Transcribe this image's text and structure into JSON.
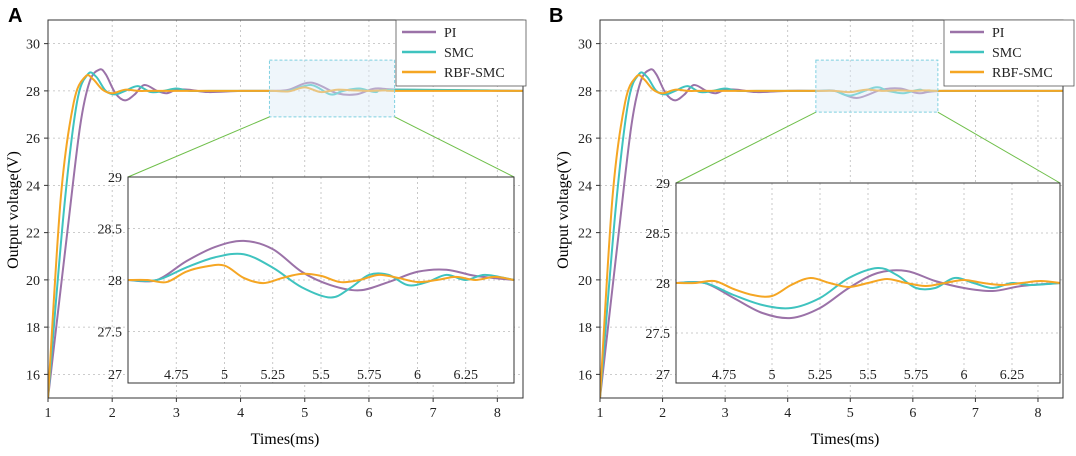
{
  "figure": {
    "panels": [
      "A",
      "B"
    ]
  },
  "colors": {
    "PI": "#9b72a8",
    "SMC": "#3fc3bf",
    "RBF-SMC": "#f5a623",
    "zoom_box": "#7fd0e0",
    "connector": "#6fbf4a",
    "grid": "#bbbbbb"
  },
  "chart_data": [
    {
      "panel": "A",
      "type": "line",
      "xlabel": "Times(ms)",
      "ylabel": "Output voltage(V)",
      "xlim": [
        1,
        8.4
      ],
      "ylim": [
        15,
        31
      ],
      "xticks": [
        "1",
        "2",
        "3",
        "4",
        "5",
        "6",
        "7",
        "8"
      ],
      "yticks": [
        "16",
        "18",
        "20",
        "22",
        "24",
        "26",
        "28",
        "30"
      ],
      "legend": [
        "PI",
        "SMC",
        "RBF-SMC"
      ],
      "zoom_region": {
        "x": [
          4.45,
          6.4
        ],
        "y": [
          26.9,
          29.3
        ]
      },
      "series": [
        {
          "name": "PI",
          "x": [
            1,
            1.3,
            1.5,
            1.65,
            1.8,
            1.9,
            2.05,
            2.2,
            2.35,
            2.5,
            2.7,
            2.85,
            3.0,
            3.2,
            3.5,
            4.0,
            4.5,
            4.75,
            5.1,
            5.5,
            5.8,
            6.1,
            6.5,
            8.4
          ],
          "y": [
            15,
            22,
            26.5,
            28.4,
            28.9,
            28.7,
            27.9,
            27.6,
            27.85,
            28.25,
            28.0,
            27.9,
            28.05,
            28.05,
            27.95,
            28.0,
            28.0,
            28.05,
            28.35,
            27.9,
            27.85,
            28.1,
            28.05,
            28.0
          ]
        },
        {
          "name": "SMC",
          "x": [
            1,
            1.25,
            1.45,
            1.62,
            1.75,
            1.9,
            2.05,
            2.2,
            2.4,
            2.6,
            2.8,
            3.0,
            3.2,
            3.5,
            4.0,
            4.5,
            4.75,
            5.1,
            5.4,
            5.6,
            5.85,
            6.1,
            6.4,
            8.4
          ],
          "y": [
            15,
            23,
            27.5,
            28.7,
            28.6,
            28.0,
            27.85,
            28.0,
            28.2,
            27.95,
            28.0,
            28.1,
            28.0,
            28.0,
            28.0,
            28.0,
            28.0,
            28.25,
            27.85,
            28.0,
            28.1,
            27.95,
            28.05,
            28.0
          ]
        },
        {
          "name": "RBF-SMC",
          "x": [
            1,
            1.2,
            1.4,
            1.58,
            1.7,
            1.85,
            2.0,
            2.2,
            2.4,
            2.6,
            3.0,
            3.5,
            4.0,
            4.5,
            4.75,
            5.0,
            5.25,
            5.5,
            5.75,
            6.0,
            6.25,
            6.5,
            8.4
          ],
          "y": [
            15,
            23.5,
            27.5,
            28.6,
            28.5,
            28.05,
            27.9,
            28.05,
            28.0,
            28.0,
            28.0,
            28.0,
            28.0,
            28.0,
            27.98,
            28.15,
            27.95,
            28.05,
            28.02,
            28.0,
            28.02,
            28.0,
            28.0
          ]
        }
      ],
      "inset": {
        "xlim": [
          4.5,
          6.5
        ],
        "ylim": [
          27,
          29
        ],
        "xticks": [
          "4.75",
          "5",
          "5.25",
          "5.5",
          "5.75",
          "6",
          "6.25"
        ],
        "yticks": [
          "27",
          "27.5",
          "28",
          "28.5",
          "29"
        ],
        "series": [
          {
            "name": "PI",
            "x": [
              4.5,
              4.65,
              4.8,
              4.95,
              5.1,
              5.25,
              5.4,
              5.55,
              5.7,
              5.85,
              6.0,
              6.15,
              6.3,
              6.5
            ],
            "y": [
              28.0,
              28.0,
              28.18,
              28.32,
              28.38,
              28.3,
              28.08,
              27.95,
              27.9,
              27.98,
              28.08,
              28.1,
              28.04,
              28.0
            ]
          },
          {
            "name": "SMC",
            "x": [
              4.5,
              4.65,
              4.8,
              4.95,
              5.1,
              5.25,
              5.4,
              5.55,
              5.65,
              5.75,
              5.85,
              5.95,
              6.05,
              6.15,
              6.25,
              6.35,
              6.5
            ],
            "y": [
              28.0,
              28.0,
              28.12,
              28.22,
              28.25,
              28.12,
              27.93,
              27.83,
              27.92,
              28.05,
              28.05,
              27.95,
              27.98,
              28.05,
              28.0,
              28.05,
              28.0
            ]
          },
          {
            "name": "RBF-SMC",
            "x": [
              4.5,
              4.6,
              4.7,
              4.8,
              4.9,
              5.0,
              5.1,
              5.2,
              5.3,
              5.4,
              5.5,
              5.6,
              5.7,
              5.8,
              5.9,
              6.0,
              6.1,
              6.2,
              6.3,
              6.4,
              6.5
            ],
            "y": [
              28.0,
              28.0,
              27.98,
              28.08,
              28.13,
              28.14,
              28.02,
              27.97,
              28.02,
              28.06,
              28.04,
              27.98,
              28.0,
              28.05,
              28.02,
              27.98,
              28.0,
              28.03,
              28.0,
              28.03,
              28.0
            ]
          }
        ]
      }
    },
    {
      "panel": "B",
      "type": "line",
      "xlabel": "Times(ms)",
      "ylabel": "Output voltage(V)",
      "xlim": [
        1,
        8.4
      ],
      "ylim": [
        15,
        31
      ],
      "xticks": [
        "1",
        "2",
        "3",
        "4",
        "5",
        "6",
        "7",
        "8"
      ],
      "yticks": [
        "16",
        "18",
        "20",
        "22",
        "24",
        "26",
        "28",
        "30"
      ],
      "legend": [
        "PI",
        "SMC",
        "RBF-SMC"
      ],
      "zoom_region": {
        "x": [
          4.45,
          6.4
        ],
        "y": [
          27.1,
          29.3
        ]
      },
      "series": [
        {
          "name": "PI",
          "x": [
            1,
            1.3,
            1.5,
            1.65,
            1.8,
            1.9,
            2.05,
            2.2,
            2.35,
            2.5,
            2.7,
            2.85,
            3.0,
            3.2,
            3.5,
            4.0,
            4.5,
            4.75,
            5.1,
            5.5,
            5.8,
            6.1,
            6.5,
            8.4
          ],
          "y": [
            15,
            22,
            26.5,
            28.4,
            28.9,
            28.7,
            27.9,
            27.6,
            27.85,
            28.25,
            28.0,
            27.9,
            28.05,
            28.05,
            27.95,
            28.0,
            28.0,
            28.0,
            27.7,
            28.05,
            28.1,
            27.9,
            28.0,
            28.0
          ]
        },
        {
          "name": "SMC",
          "x": [
            1,
            1.25,
            1.45,
            1.62,
            1.75,
            1.9,
            2.05,
            2.2,
            2.4,
            2.6,
            2.8,
            3.0,
            3.2,
            3.5,
            4.0,
            4.5,
            4.75,
            5.0,
            5.4,
            5.6,
            5.85,
            6.1,
            6.4,
            8.4
          ],
          "y": [
            15,
            23,
            27.5,
            28.7,
            28.6,
            28.0,
            27.85,
            28.0,
            28.2,
            27.95,
            28.0,
            28.1,
            28.0,
            28.0,
            28.0,
            28.0,
            28.0,
            27.8,
            28.15,
            28.0,
            27.9,
            28.05,
            28.0,
            28.0
          ]
        },
        {
          "name": "RBF-SMC",
          "x": [
            1,
            1.2,
            1.4,
            1.58,
            1.7,
            1.85,
            2.0,
            2.2,
            2.4,
            2.6,
            3.0,
            3.5,
            4.0,
            4.5,
            4.75,
            5.0,
            5.25,
            5.5,
            5.75,
            6.0,
            6.25,
            6.5,
            8.4
          ],
          "y": [
            15,
            23.5,
            27.5,
            28.6,
            28.5,
            28.05,
            27.9,
            28.05,
            28.0,
            28.0,
            28.0,
            28.0,
            28.0,
            28.0,
            28.0,
            27.95,
            28.05,
            28.0,
            28.02,
            28.0,
            28.02,
            28.0,
            28.0
          ]
        }
      ],
      "inset": {
        "xlim": [
          4.5,
          6.5
        ],
        "ylim": [
          27,
          29
        ],
        "xticks": [
          "4.75",
          "5",
          "5.25",
          "5.5",
          "5.75",
          "6",
          "6.25"
        ],
        "yticks": [
          "27",
          "27.5",
          "28",
          "28.5",
          "29"
        ],
        "series": [
          {
            "name": "PI",
            "x": [
              4.5,
              4.65,
              4.8,
              4.95,
              5.1,
              5.25,
              5.4,
              5.55,
              5.7,
              5.85,
              6.0,
              6.15,
              6.3,
              6.5
            ],
            "y": [
              28.0,
              28.0,
              27.85,
              27.7,
              27.65,
              27.75,
              27.95,
              28.1,
              28.12,
              28.02,
              27.95,
              27.92,
              27.97,
              28.0
            ]
          },
          {
            "name": "SMC",
            "x": [
              4.5,
              4.65,
              4.8,
              4.95,
              5.1,
              5.25,
              5.4,
              5.55,
              5.65,
              5.75,
              5.85,
              5.95,
              6.05,
              6.15,
              6.25,
              6.35,
              6.5
            ],
            "y": [
              28.0,
              28.0,
              27.88,
              27.78,
              27.75,
              27.85,
              28.05,
              28.15,
              28.08,
              27.95,
              27.95,
              28.05,
              28.0,
              27.95,
              28.0,
              27.98,
              28.0
            ]
          },
          {
            "name": "RBF-SMC",
            "x": [
              4.5,
              4.6,
              4.7,
              4.8,
              4.9,
              5.0,
              5.1,
              5.2,
              5.3,
              5.4,
              5.5,
              5.6,
              5.7,
              5.8,
              5.9,
              6.0,
              6.1,
              6.2,
              6.3,
              6.4,
              6.5
            ],
            "y": [
              28.0,
              28.0,
              28.02,
              27.94,
              27.88,
              27.87,
              27.98,
              28.05,
              28.0,
              27.96,
              28.0,
              28.04,
              28.0,
              27.97,
              28.0,
              28.03,
              28.0,
              27.98,
              28.0,
              28.02,
              28.0
            ]
          }
        ]
      }
    }
  ]
}
